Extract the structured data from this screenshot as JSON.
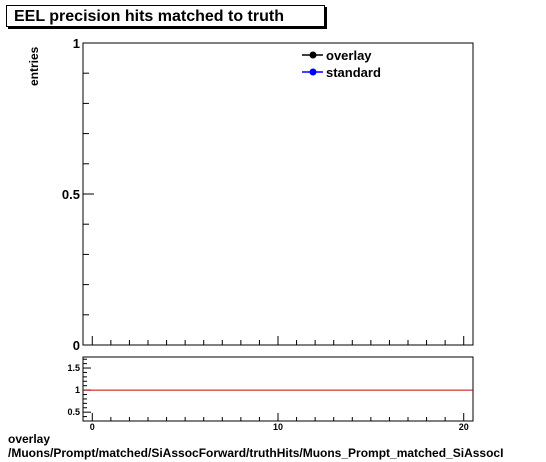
{
  "chart_data": [
    {
      "type": "line",
      "title": "EEL precision hits matched to truth",
      "ylabel": "entries",
      "xlabel": "",
      "ylim": [
        0,
        1
      ],
      "yticks": [
        "0",
        "0.5",
        "1"
      ],
      "xlim": [
        -0.5,
        20.5
      ],
      "legend": {
        "placement": "top-right",
        "entries": [
          {
            "name": "overlay",
            "color": "#000000"
          },
          {
            "name": "standard",
            "color": "#0000ff"
          }
        ]
      },
      "series": [
        {
          "name": "overlay",
          "color": "#000000",
          "x": [],
          "y": []
        },
        {
          "name": "standard",
          "color": "#0000ff",
          "x": [],
          "y": []
        }
      ]
    },
    {
      "type": "line",
      "xlim": [
        -0.5,
        20.5
      ],
      "ylim": [
        0.3,
        1.75
      ],
      "yticks": [
        "0.5",
        "1",
        "1.5"
      ],
      "xticks": [
        "0",
        "10",
        "20"
      ],
      "reference_line": {
        "y": 1,
        "color": "#cc0000"
      },
      "series": []
    }
  ],
  "footer": {
    "line1": "overlay",
    "line2": "/Muons/Prompt/matched/SiAssocForward/truthHits/Muons_Prompt_matched_SiAssocI"
  }
}
